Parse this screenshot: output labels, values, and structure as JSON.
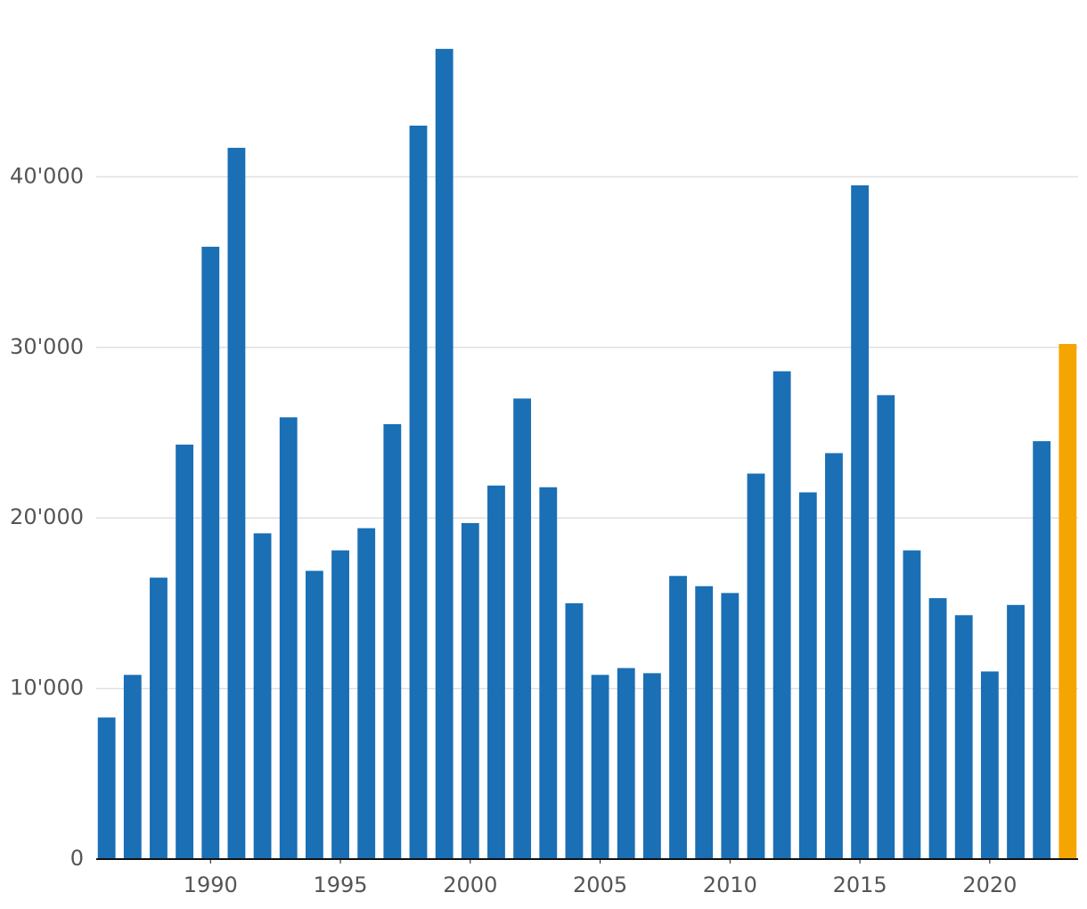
{
  "chart_data": {
    "type": "bar",
    "x": [
      1986,
      1987,
      1988,
      1989,
      1990,
      1991,
      1992,
      1993,
      1994,
      1995,
      1996,
      1997,
      1998,
      1999,
      2000,
      2001,
      2002,
      2003,
      2004,
      2005,
      2006,
      2007,
      2008,
      2009,
      2010,
      2011,
      2012,
      2013,
      2014,
      2015,
      2016,
      2017,
      2018,
      2019,
      2020,
      2021,
      2022,
      2023
    ],
    "values": [
      8300,
      10800,
      16500,
      24300,
      35900,
      41700,
      19100,
      25900,
      16900,
      18100,
      19400,
      25500,
      43000,
      47500,
      19700,
      21900,
      27000,
      21800,
      15000,
      10800,
      11200,
      10900,
      16600,
      16000,
      15600,
      22600,
      28600,
      21500,
      23800,
      39500,
      27200,
      18100,
      15300,
      14300,
      11000,
      14900,
      24500,
      30200
    ],
    "colors": [
      "#1a6fb5",
      "#1a6fb5",
      "#1a6fb5",
      "#1a6fb5",
      "#1a6fb5",
      "#1a6fb5",
      "#1a6fb5",
      "#1a6fb5",
      "#1a6fb5",
      "#1a6fb5",
      "#1a6fb5",
      "#1a6fb5",
      "#1a6fb5",
      "#1a6fb5",
      "#1a6fb5",
      "#1a6fb5",
      "#1a6fb5",
      "#1a6fb5",
      "#1a6fb5",
      "#1a6fb5",
      "#1a6fb5",
      "#1a6fb5",
      "#1a6fb5",
      "#1a6fb5",
      "#1a6fb5",
      "#1a6fb5",
      "#1a6fb5",
      "#1a6fb5",
      "#1a6fb5",
      "#1a6fb5",
      "#1a6fb5",
      "#1a6fb5",
      "#1a6fb5",
      "#1a6fb5",
      "#1a6fb5",
      "#1a6fb5",
      "#1a6fb5",
      "#f5a500"
    ],
    "xlim": [
      1985.6,
      2023.4
    ],
    "xticks": [
      1990,
      1995,
      2000,
      2005,
      2010,
      2015,
      2020
    ],
    "ylim": [
      0,
      50000
    ],
    "yticks": [
      0,
      {
        "value": 10000,
        "label": "10'000"
      },
      {
        "value": 20000,
        "label": "20'000"
      },
      {
        "value": 30000,
        "label": "30'000"
      },
      {
        "value": 40000,
        "label": "40'000"
      }
    ],
    "grid": true
  }
}
